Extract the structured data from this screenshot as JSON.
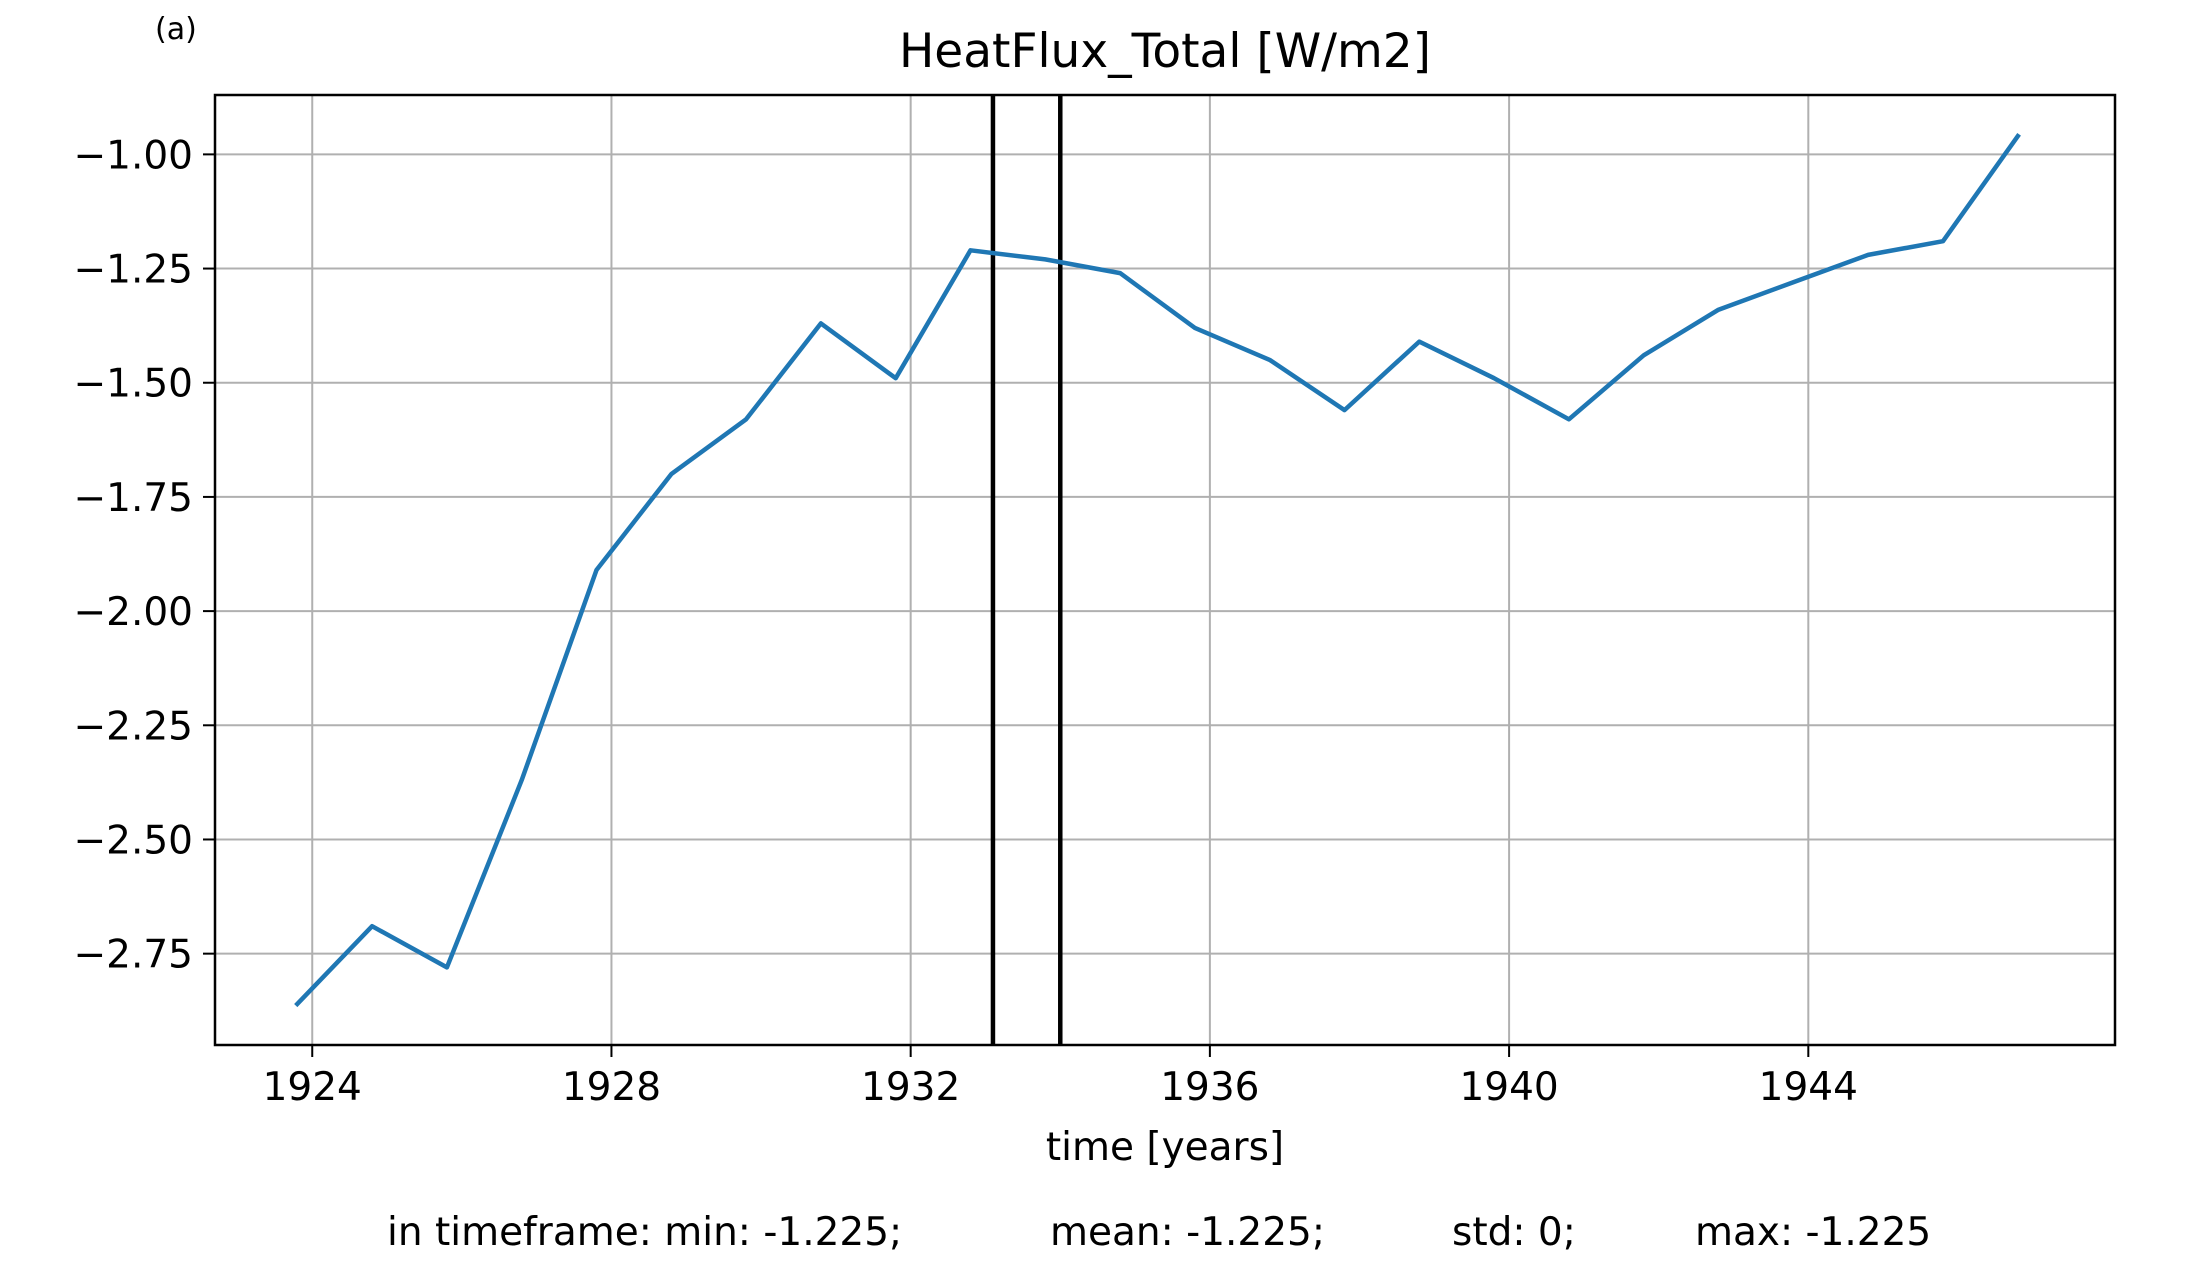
{
  "chart_data": {
    "type": "line",
    "panel_label": "(a)",
    "title": "HeatFlux_Total [W/m2]",
    "xlabel": "time [years]",
    "ylabel": "",
    "xlim": [
      1922.7,
      1948.1
    ],
    "ylim": [
      -2.95,
      -0.87
    ],
    "xticks": [
      1924,
      1928,
      1932,
      1936,
      1940,
      1944
    ],
    "xtick_labels": [
      "1924",
      "1928",
      "1932",
      "1936",
      "1940",
      "1944"
    ],
    "yticks": [
      -1.0,
      -1.25,
      -1.5,
      -1.75,
      -2.0,
      -2.25,
      -2.5,
      -2.75
    ],
    "ytick_labels": [
      "−1.00",
      "−1.25",
      "−1.50",
      "−1.75",
      "−2.00",
      "−2.25",
      "−2.50",
      "−2.75"
    ],
    "grid": true,
    "series": [
      {
        "color": "#1f77b4",
        "x": [
          1923.8,
          1924.8,
          1925.8,
          1926.8,
          1927.8,
          1928.8,
          1929.8,
          1930.8,
          1931.8,
          1932.8,
          1933.8,
          1934.8,
          1935.8,
          1936.8,
          1937.8,
          1938.8,
          1939.8,
          1940.8,
          1941.8,
          1942.8,
          1943.8,
          1944.8,
          1945.8,
          1946.8
        ],
        "y": [
          -2.86,
          -2.69,
          -2.78,
          -2.37,
          -1.91,
          -1.7,
          -1.58,
          -1.37,
          -1.49,
          -1.21,
          -1.23,
          -1.26,
          -1.38,
          -1.45,
          -1.56,
          -1.41,
          -1.49,
          -1.58,
          -1.44,
          -1.34,
          -1.28,
          -1.22,
          -1.19,
          -0.96
        ]
      }
    ],
    "vlines": [
      1933.1,
      1934.0
    ],
    "vline_color": "#000000"
  },
  "stats": {
    "min": "in timeframe: min: -1.225;",
    "mean": "mean: -1.225;",
    "std": "std: 0;",
    "max": "max: -1.225"
  }
}
